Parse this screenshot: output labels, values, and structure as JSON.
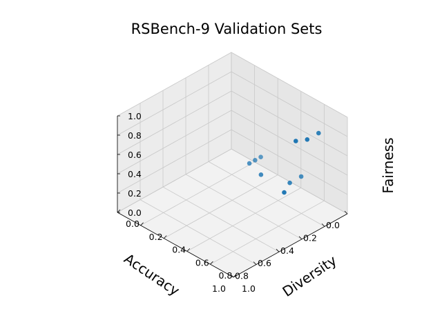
{
  "chart_data": {
    "type": "scatter",
    "projection": "3d",
    "title": "RSBench-9 Validation Sets",
    "xlabel": "Accuracy",
    "ylabel": "Diversity",
    "zlabel": "Fairness",
    "xlim": [
      0,
      1
    ],
    "ylim": [
      0,
      1
    ],
    "zlim": [
      0,
      1
    ],
    "xticks": [
      "0.0",
      "0.2",
      "0.4",
      "0.6",
      "0.8",
      "1.0"
    ],
    "yticks": [
      "0.0",
      "0.2",
      "0.4",
      "0.6",
      "0.8",
      "1.0"
    ],
    "zticks": [
      "0.0",
      "0.2",
      "0.4",
      "0.6",
      "0.8",
      "1.0"
    ],
    "grid": true,
    "marker_color": "#1f77b4",
    "points": [
      {
        "x": 0.1,
        "y": 0.7,
        "z": 0.25
      },
      {
        "x": 0.2,
        "y": 0.7,
        "z": 0.25
      },
      {
        "x": 0.1,
        "y": 0.85,
        "z": 0.8
      },
      {
        "x": 0.2,
        "y": 0.85,
        "z": 0.8
      },
      {
        "x": 0.3,
        "y": 0.85,
        "z": 0.85
      },
      {
        "x": 0.3,
        "y": 0.75,
        "z": 0.25
      },
      {
        "x": 0.3,
        "y": 0.55,
        "z": 0.3
      },
      {
        "x": 0.2,
        "y": 0.45,
        "z": 0.35
      },
      {
        "x": 0.25,
        "y": 0.45,
        "z": 0.35
      },
      {
        "x": 0.3,
        "y": 0.45,
        "z": 0.35
      }
    ]
  }
}
